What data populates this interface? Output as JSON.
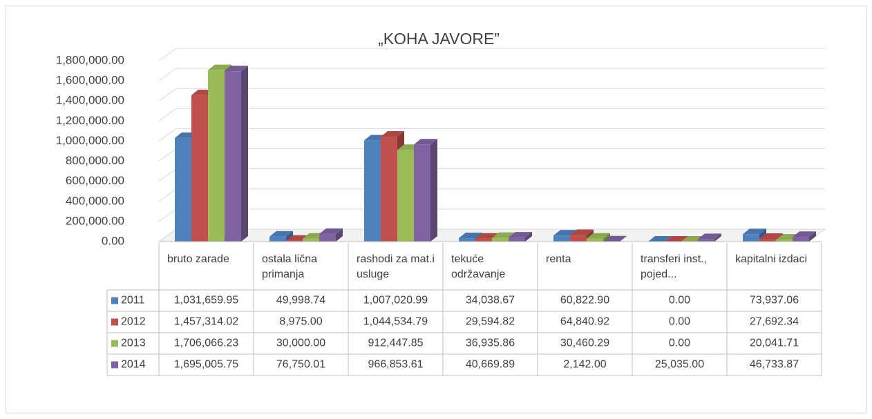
{
  "chart_data": {
    "type": "bar3d",
    "title": "„KOHA JAVORE”",
    "categories": [
      "bruto zarade",
      "ostala lična primanja",
      "rashodi za mat.i usluge",
      "tekuće održavanje",
      "renta",
      "transferi inst., pojed...",
      "kapitalni izdaci"
    ],
    "series": [
      {
        "name": "2011",
        "color": "#4f81bd",
        "values": [
          1031659.95,
          49998.74,
          1007020.99,
          34038.67,
          60822.9,
          0,
          73937.06
        ],
        "value_labels": [
          "1,031,659.95",
          "49,998.74",
          "1,007,020.99",
          "34,038.67",
          "60,822.90",
          "0.00",
          "73,937.06"
        ]
      },
      {
        "name": "2012",
        "color": "#c0504d",
        "values": [
          1457314.02,
          8975.0,
          1044534.79,
          29594.82,
          64840.92,
          0,
          27692.34
        ],
        "value_labels": [
          "1,457,314.02",
          "8,975.00",
          "1,044,534.79",
          "29,594.82",
          "64,840.92",
          "0.00",
          "27,692.34"
        ]
      },
      {
        "name": "2013",
        "color": "#9bbb59",
        "values": [
          1706066.23,
          30000.0,
          912447.85,
          36935.86,
          30460.29,
          0,
          20041.71
        ],
        "value_labels": [
          "1,706,066.23",
          "30,000.00",
          "912,447.85",
          "36,935.86",
          "30,460.29",
          "0.00",
          "20,041.71"
        ]
      },
      {
        "name": "2014",
        "color": "#8064a2",
        "values": [
          1695005.75,
          76750.01,
          966853.61,
          40669.89,
          2142.0,
          25035.0,
          46733.87
        ],
        "value_labels": [
          "1,695,005.75",
          "76,750.01",
          "966,853.61",
          "40,669.89",
          "2,142.00",
          "25,035.00",
          "46,733.87"
        ]
      }
    ],
    "ylim": [
      0,
      1800000
    ],
    "yticks": [
      {
        "value": 0,
        "label": "0.00"
      },
      {
        "value": 200000,
        "label": "200,000.00"
      },
      {
        "value": 400000,
        "label": "400,000.00"
      },
      {
        "value": 600000,
        "label": "600,000.00"
      },
      {
        "value": 800000,
        "label": "800,000.00"
      },
      {
        "value": 1000000,
        "label": "1,000,000.00"
      },
      {
        "value": 1200000,
        "label": "1,200,000.00"
      },
      {
        "value": 1400000,
        "label": "1,400,000.00"
      },
      {
        "value": 1600000,
        "label": "1,600,000.00"
      },
      {
        "value": 1800000,
        "label": "1,800,000.00"
      }
    ],
    "grid": true
  }
}
